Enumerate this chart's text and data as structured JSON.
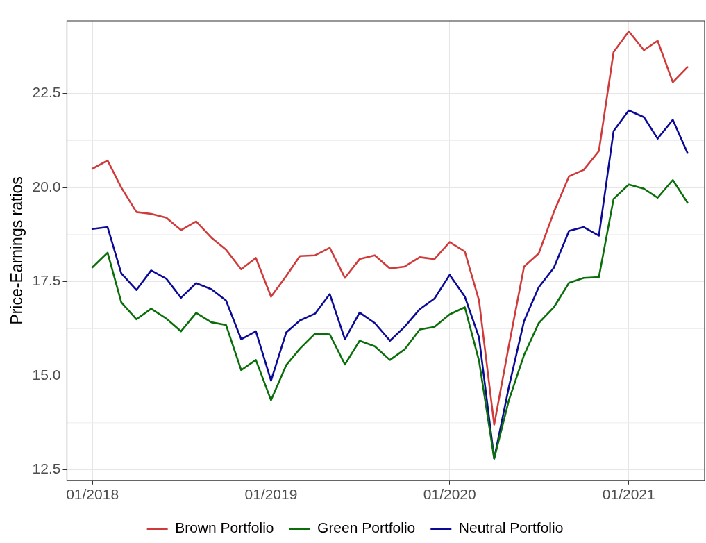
{
  "chart_data": {
    "type": "line",
    "ylabel": "Price-Earnings ratios",
    "x": [
      "2018-01",
      "2018-02",
      "2018-03",
      "2018-04",
      "2018-05",
      "2018-06",
      "2018-07",
      "2018-08",
      "2018-09",
      "2018-10",
      "2018-11",
      "2018-12",
      "2019-01",
      "2019-02",
      "2019-03",
      "2019-04",
      "2019-05",
      "2019-06",
      "2019-07",
      "2019-08",
      "2019-09",
      "2019-10",
      "2019-11",
      "2019-12",
      "2020-01",
      "2020-02",
      "2020-03",
      "2020-04",
      "2020-05",
      "2020-06",
      "2020-07",
      "2020-08",
      "2020-09",
      "2020-10",
      "2020-11",
      "2020-12",
      "2021-01",
      "2021-02",
      "2021-03",
      "2021-04",
      "2021-05"
    ],
    "series": [
      {
        "name": "Brown Portfolio",
        "color": "#d03a3a",
        "values": [
          20.5,
          20.72,
          20.0,
          19.35,
          19.3,
          19.2,
          18.87,
          19.1,
          18.67,
          18.35,
          17.83,
          18.13,
          17.1,
          17.65,
          18.18,
          18.2,
          18.4,
          17.6,
          18.1,
          18.2,
          17.85,
          17.9,
          18.15,
          18.1,
          18.55,
          18.3,
          17.0,
          13.7,
          15.8,
          17.9,
          18.25,
          19.35,
          20.3,
          20.47,
          20.97,
          23.6,
          24.15,
          23.65,
          23.9,
          22.8,
          23.2
        ]
      },
      {
        "name": "Green Portfolio",
        "color": "#0a6e0a",
        "values": [
          17.88,
          18.27,
          16.95,
          16.5,
          16.78,
          16.52,
          16.18,
          16.67,
          16.42,
          16.35,
          15.15,
          15.42,
          14.35,
          15.28,
          15.72,
          16.12,
          16.1,
          15.3,
          15.93,
          15.78,
          15.42,
          15.7,
          16.23,
          16.3,
          16.63,
          16.82,
          15.4,
          12.8,
          14.35,
          15.55,
          16.4,
          16.82,
          17.47,
          17.6,
          17.62,
          19.7,
          20.08,
          19.97,
          19.73,
          20.2,
          19.6
        ]
      },
      {
        "name": "Neutral Portfolio",
        "color": "#0a0a96",
        "values": [
          18.9,
          18.95,
          17.72,
          17.28,
          17.8,
          17.58,
          17.07,
          17.46,
          17.3,
          17.0,
          15.97,
          16.18,
          14.87,
          16.15,
          16.47,
          16.65,
          17.17,
          15.97,
          16.68,
          16.4,
          15.93,
          16.3,
          16.77,
          17.05,
          17.68,
          17.1,
          16.02,
          12.8,
          14.7,
          16.45,
          17.35,
          17.87,
          18.85,
          18.95,
          18.72,
          21.5,
          22.05,
          21.87,
          21.3,
          21.8,
          20.92
        ]
      }
    ],
    "xlim": [
      "2017-11-10",
      "2021-06-05"
    ],
    "xticks": [
      {
        "value": "2018-01",
        "label": "01/2018"
      },
      {
        "value": "2019-01",
        "label": "01/2019"
      },
      {
        "value": "2020-01",
        "label": "01/2020"
      },
      {
        "value": "2021-01",
        "label": "01/2021"
      }
    ],
    "ylim": [
      12.22,
      24.43
    ],
    "yticks": [
      {
        "value": 12.5,
        "label": "12.5"
      },
      {
        "value": 15,
        "label": "15.0"
      },
      {
        "value": 17.5,
        "label": "17.5"
      },
      {
        "value": 20,
        "label": "20.0"
      },
      {
        "value": 22.5,
        "label": "22.5"
      }
    ],
    "grid": true,
    "legend": "bottom",
    "marker": "none",
    "line_style": "solid"
  }
}
